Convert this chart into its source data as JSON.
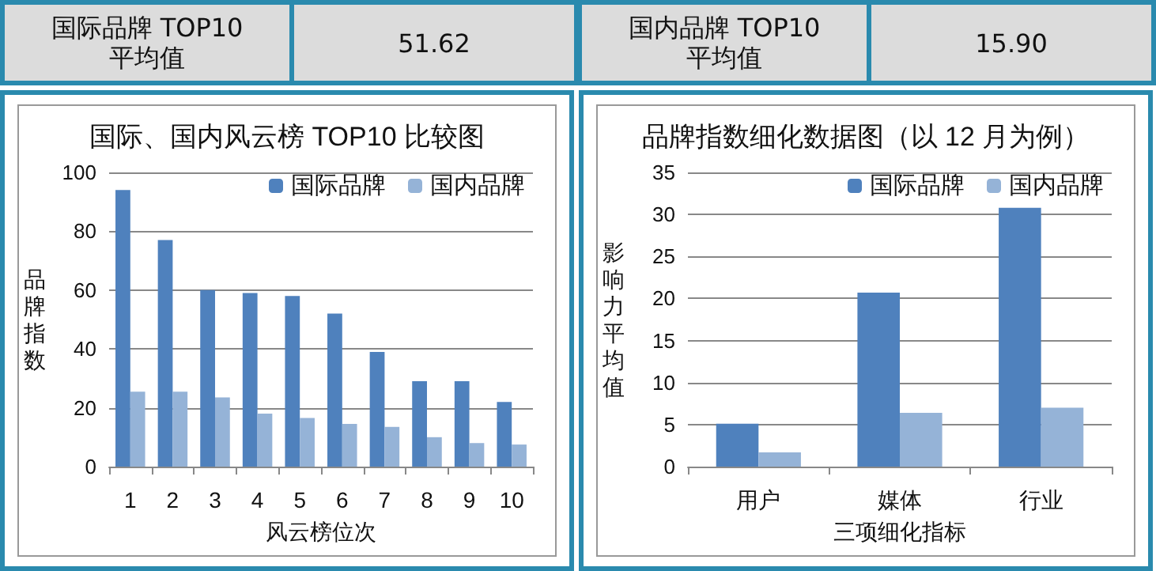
{
  "chart_data": [
    {
      "type": "other",
      "title": "国际品牌 TOP10 平均值",
      "annotations": [
        "51.62"
      ]
    },
    {
      "type": "other",
      "title": "国内品牌 TOP10 平均值",
      "annotations": [
        "15.90"
      ]
    },
    {
      "type": "bar",
      "title": "国际、国内风云榜 TOP10 比较图",
      "xlabel": "风云榜位次",
      "ylabel": "品牌指数",
      "categories": [
        "1",
        "2",
        "3",
        "4",
        "5",
        "6",
        "7",
        "8",
        "9",
        "10"
      ],
      "series": [
        {
          "name": "国际品牌",
          "color": "#4f81bd",
          "values": [
            94,
            77,
            60,
            59,
            58,
            52,
            39,
            29,
            29,
            22
          ]
        },
        {
          "name": "国内品牌",
          "color": "#95b3d7",
          "values": [
            25.5,
            25.5,
            23.5,
            18,
            16.5,
            14.5,
            13.5,
            10,
            8,
            7.5
          ]
        }
      ],
      "ylim": [
        0,
        100
      ],
      "yticks": [
        0,
        20,
        40,
        60,
        80,
        100
      ],
      "grid": "y",
      "legend": "top right"
    },
    {
      "type": "bar",
      "title": "品牌指数细化数据图（以 12 月为例）",
      "xlabel": "三项细化指标",
      "ylabel": "影响力平均值",
      "categories": [
        "用户",
        "媒体",
        "行业"
      ],
      "series": [
        {
          "name": "国际品牌",
          "color": "#4f81bd",
          "values": [
            5.1,
            20.7,
            30.8
          ]
        },
        {
          "name": "国内品牌",
          "color": "#95b3d7",
          "values": [
            1.7,
            6.4,
            7.0
          ]
        }
      ],
      "ylim": [
        0,
        35
      ],
      "yticks": [
        0,
        5,
        10,
        15,
        20,
        25,
        30,
        35
      ],
      "grid": "y",
      "legend": "top right"
    }
  ]
}
